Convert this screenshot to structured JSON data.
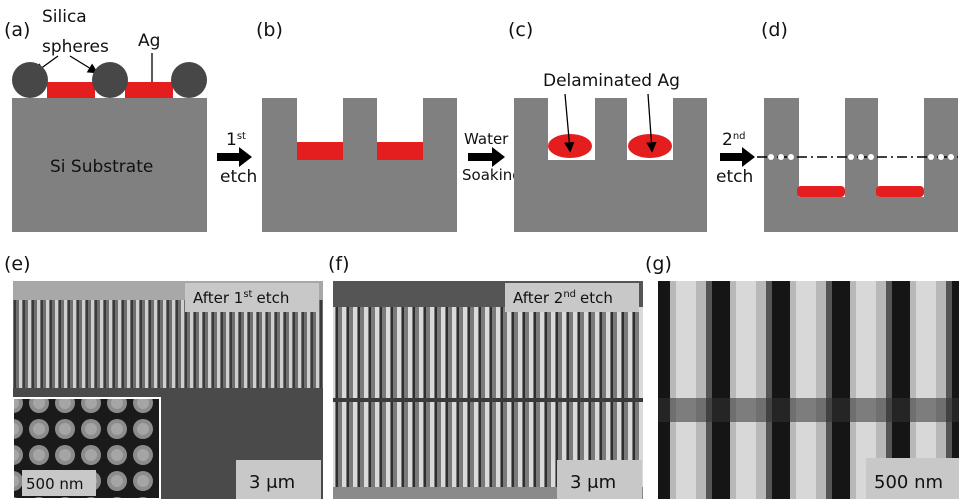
{
  "labels": [
    "(a)",
    "(b)",
    "(c)",
    "(d)",
    "(e)",
    "(f)",
    "(g)"
  ],
  "panel_a": {
    "silica_label": "Silica",
    "spheres_label": "spheres",
    "ag_label": "Ag",
    "substrate_label": "Si Substrate"
  },
  "steps": [
    {
      "ordinal": "1",
      "suffix": "st",
      "word": "etch"
    },
    {
      "line1": "Water",
      "line2": "Soaking"
    },
    {
      "ordinal": "2",
      "suffix": "nd",
      "word": "etch"
    }
  ],
  "panel_c": {
    "delaminated_label": "Delaminated Ag"
  },
  "images": [
    {
      "caption_main": "After 1",
      "caption_sup": "st",
      "caption_rest": "etch",
      "scale": "3 μm",
      "inset_scale": "500 nm"
    },
    {
      "caption_main": "After 2",
      "caption_sup": "nd",
      "caption_rest": "etch",
      "scale": "3 μm"
    },
    {
      "scale": "500 nm"
    }
  ]
}
